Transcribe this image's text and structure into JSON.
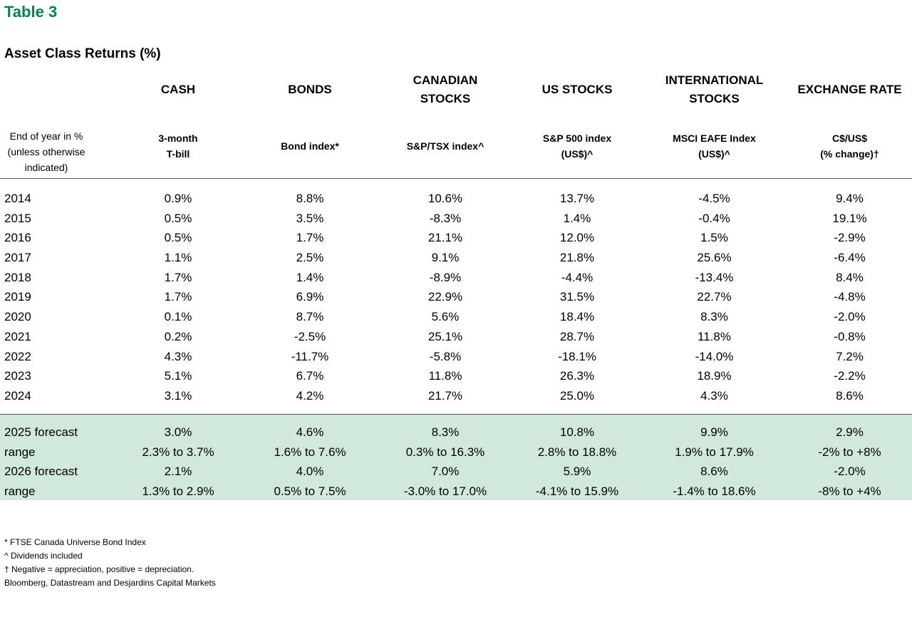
{
  "title": "Table 3",
  "subtitle": "Asset Class Returns (%)",
  "row_label_header": "End of year in %\n(unless otherwise\nindicated)",
  "columns": [
    {
      "group": "CASH",
      "measure": "3-month\nT-bill"
    },
    {
      "group": "BONDS",
      "measure": "Bond index*"
    },
    {
      "group": "CANADIAN\nSTOCKS",
      "measure": "S&P/TSX index^"
    },
    {
      "group": "US STOCKS",
      "measure": "S&P 500 index\n(US$)^"
    },
    {
      "group": "INTERNATIONAL\nSTOCKS",
      "measure": "MSCI EAFE Index\n(US$)^"
    },
    {
      "group": "EXCHANGE RATE",
      "measure": "C$/US$\n(% change)†"
    }
  ],
  "history_rows": [
    {
      "label": "2014",
      "values": [
        "0.9%",
        "8.8%",
        "10.6%",
        "13.7%",
        "-4.5%",
        "9.4%"
      ]
    },
    {
      "label": "2015",
      "values": [
        "0.5%",
        "3.5%",
        "-8.3%",
        "1.4%",
        "-0.4%",
        "19.1%"
      ]
    },
    {
      "label": "2016",
      "values": [
        "0.5%",
        "1.7%",
        "21.1%",
        "12.0%",
        "1.5%",
        "-2.9%"
      ]
    },
    {
      "label": "2017",
      "values": [
        "1.1%",
        "2.5%",
        "9.1%",
        "21.8%",
        "25.6%",
        "-6.4%"
      ]
    },
    {
      "label": "2018",
      "values": [
        "1.7%",
        "1.4%",
        "-8.9%",
        "-4.4%",
        "-13.4%",
        "8.4%"
      ]
    },
    {
      "label": "2019",
      "values": [
        "1.7%",
        "6.9%",
        "22.9%",
        "31.5%",
        "22.7%",
        "-4.8%"
      ]
    },
    {
      "label": "2020",
      "values": [
        "0.1%",
        "8.7%",
        "5.6%",
        "18.4%",
        "8.3%",
        "-2.0%"
      ]
    },
    {
      "label": "2021",
      "values": [
        "0.2%",
        "-2.5%",
        "25.1%",
        "28.7%",
        "11.8%",
        "-0.8%"
      ]
    },
    {
      "label": "2022",
      "values": [
        "4.3%",
        "-11.7%",
        "-5.8%",
        "-18.1%",
        "-14.0%",
        "7.2%"
      ]
    },
    {
      "label": "2023",
      "values": [
        "5.1%",
        "6.7%",
        "11.8%",
        "26.3%",
        "18.9%",
        "-2.2%"
      ]
    },
    {
      "label": "2024",
      "values": [
        "3.1%",
        "4.2%",
        "21.7%",
        "25.0%",
        "4.3%",
        "8.6%"
      ]
    }
  ],
  "forecast_rows": [
    {
      "label": "2025 forecast",
      "values": [
        "3.0%",
        "4.6%",
        "8.3%",
        "10.8%",
        "9.9%",
        "2.9%"
      ]
    },
    {
      "label": "range",
      "values": [
        "2.3% to 3.7%",
        "1.6% to 7.6%",
        "0.3% to 16.3%",
        "2.8% to 18.8%",
        "1.9% to 17.9%",
        "-2% to +8%"
      ]
    },
    {
      "label": "2026 forecast",
      "values": [
        "2.1%",
        "4.0%",
        "7.0%",
        "5.9%",
        "8.6%",
        "-2.0%"
      ]
    },
    {
      "label": "range",
      "values": [
        "1.3% to 2.9%",
        "0.5% to 7.5%",
        "-3.0% to 17.0%",
        "-4.1% to 15.9%",
        "-1.4% to 18.6%",
        "-8% to +4%"
      ]
    }
  ],
  "colors": {
    "title": "#00874E",
    "forecast_band": "#D1E8DC"
  },
  "notes": [
    "* FTSE Canada Universe Bond Index",
    "^ Dividends included",
    "† Negative = appreciation, positive = depreciation.",
    "Bloomberg, Datastream and Desjardins Capital Markets"
  ]
}
